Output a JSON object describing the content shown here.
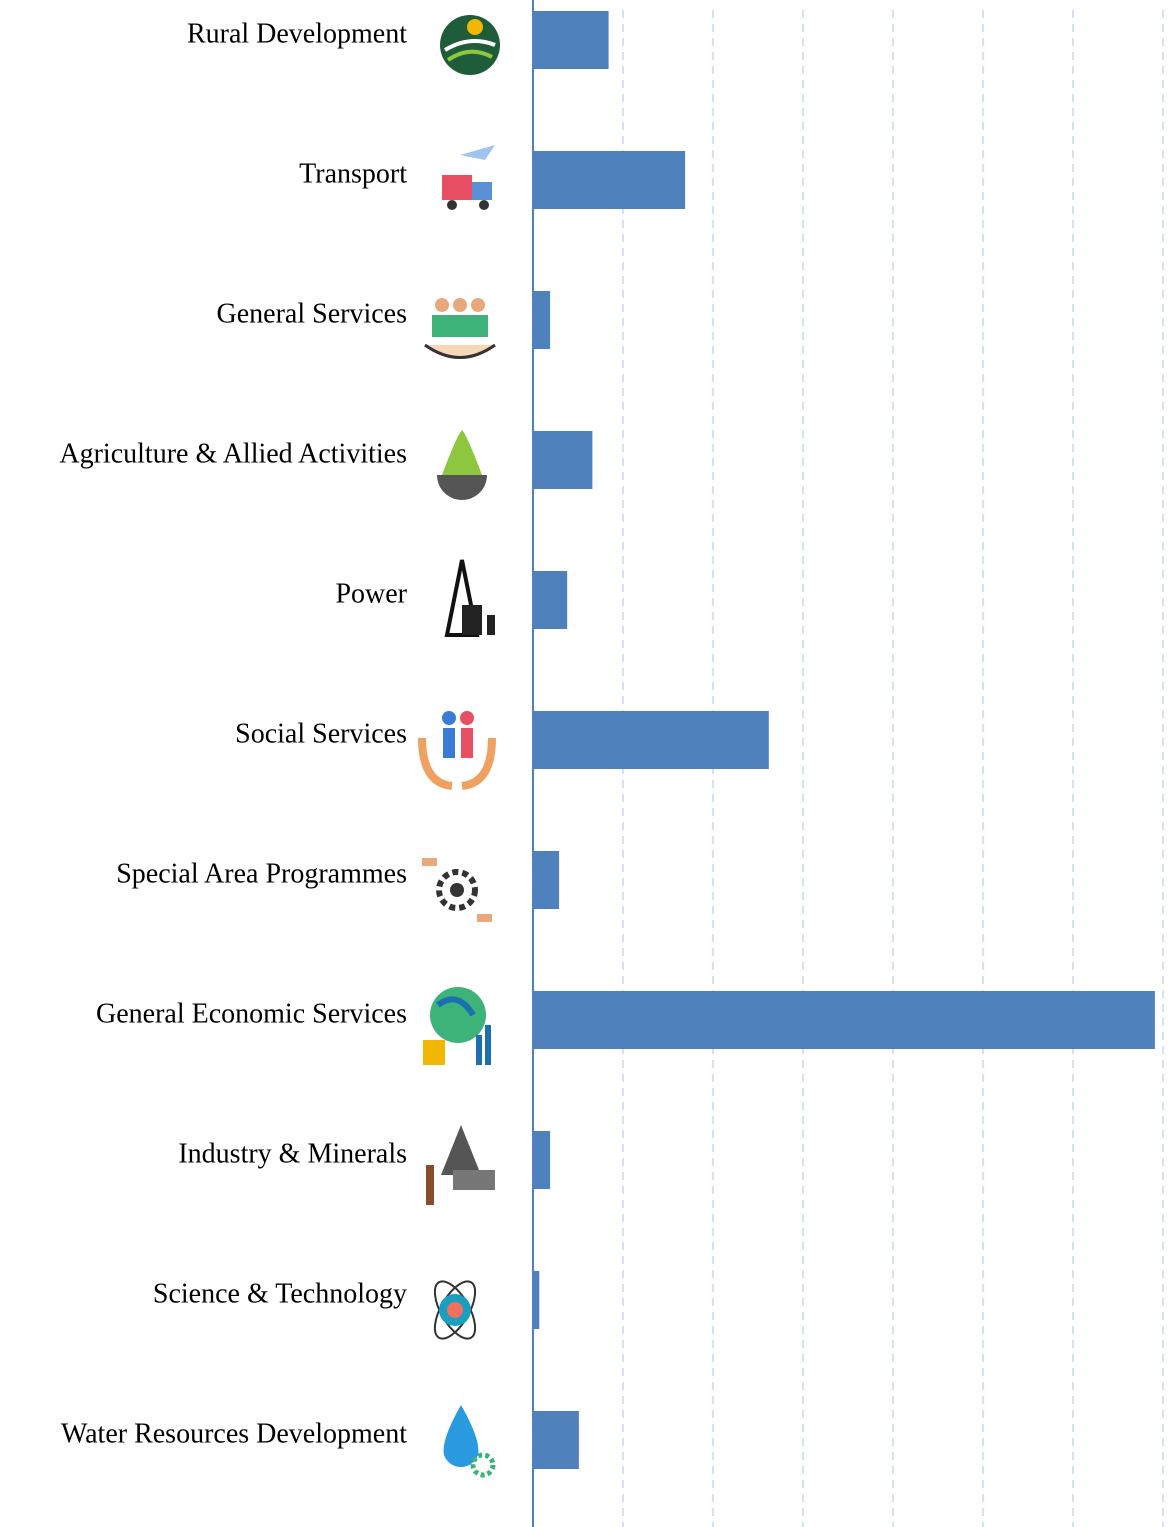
{
  "chart_data": {
    "type": "barh",
    "categories": [
      "Rural Development",
      "Transport",
      "General Services",
      "Agriculture & Allied Activities",
      "Power",
      "Social Services",
      "Special Area Programmes",
      "General Economic Services",
      "Industry & Minerals",
      "Science & Technology",
      "Water Resources Development"
    ],
    "values": [
      0.84,
      1.69,
      0.19,
      0.66,
      0.38,
      2.62,
      0.29,
      6.91,
      0.19,
      0.07,
      0.51
    ],
    "color": "#4f81bd",
    "xlim": [
      0,
      7
    ],
    "xticks": [
      0,
      1,
      2,
      3,
      4,
      5,
      6,
      7
    ],
    "grid": true
  }
}
